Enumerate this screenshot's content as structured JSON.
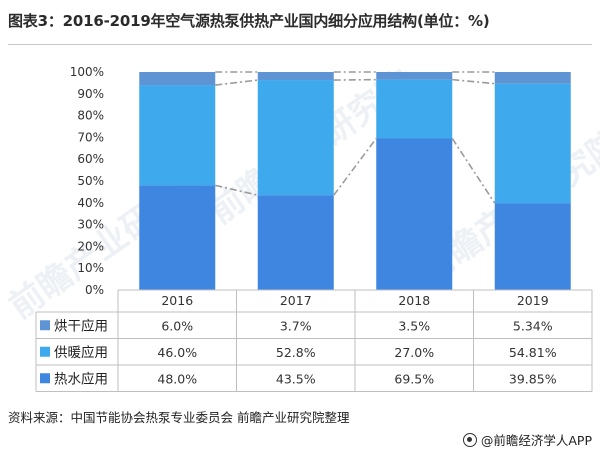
{
  "title": "图表3：2016-2019年空气源热泵供热产业国内细分应用结构(单位：%)",
  "watermark_text": "前瞻产业研究院",
  "chart_data": {
    "type": "bar",
    "stacked": true,
    "categories": [
      "2016",
      "2017",
      "2018",
      "2019"
    ],
    "ylim": [
      0,
      100
    ],
    "yticks": [
      "0%",
      "10%",
      "20%",
      "30%",
      "40%",
      "50%",
      "60%",
      "70%",
      "80%",
      "90%",
      "100%"
    ],
    "series": [
      {
        "name": "热水应用",
        "values": [
          48.0,
          43.5,
          69.5,
          39.85
        ],
        "labels": [
          "48.0%",
          "43.5%",
          "69.5%",
          "39.85%"
        ],
        "color": "#3f86e0"
      },
      {
        "name": "供暖应用",
        "values": [
          46.0,
          52.8,
          27.0,
          54.81
        ],
        "labels": [
          "46.0%",
          "52.8%",
          "27.0%",
          "54.81%"
        ],
        "color": "#3fa9ee"
      },
      {
        "name": "烘干应用",
        "values": [
          6.0,
          3.7,
          3.5,
          5.34
        ],
        "labels": [
          "6.0%",
          "3.7%",
          "3.5%",
          "5.34%"
        ],
        "color": "#5e94d4"
      }
    ],
    "table_row_order": [
      "烘干应用",
      "供暖应用",
      "热水应用"
    ]
  },
  "footer": {
    "source": "资料来源：中国节能协会热泵专业委员会 前瞻产业研究院整理",
    "brand": "@前瞻经济学人APP"
  }
}
